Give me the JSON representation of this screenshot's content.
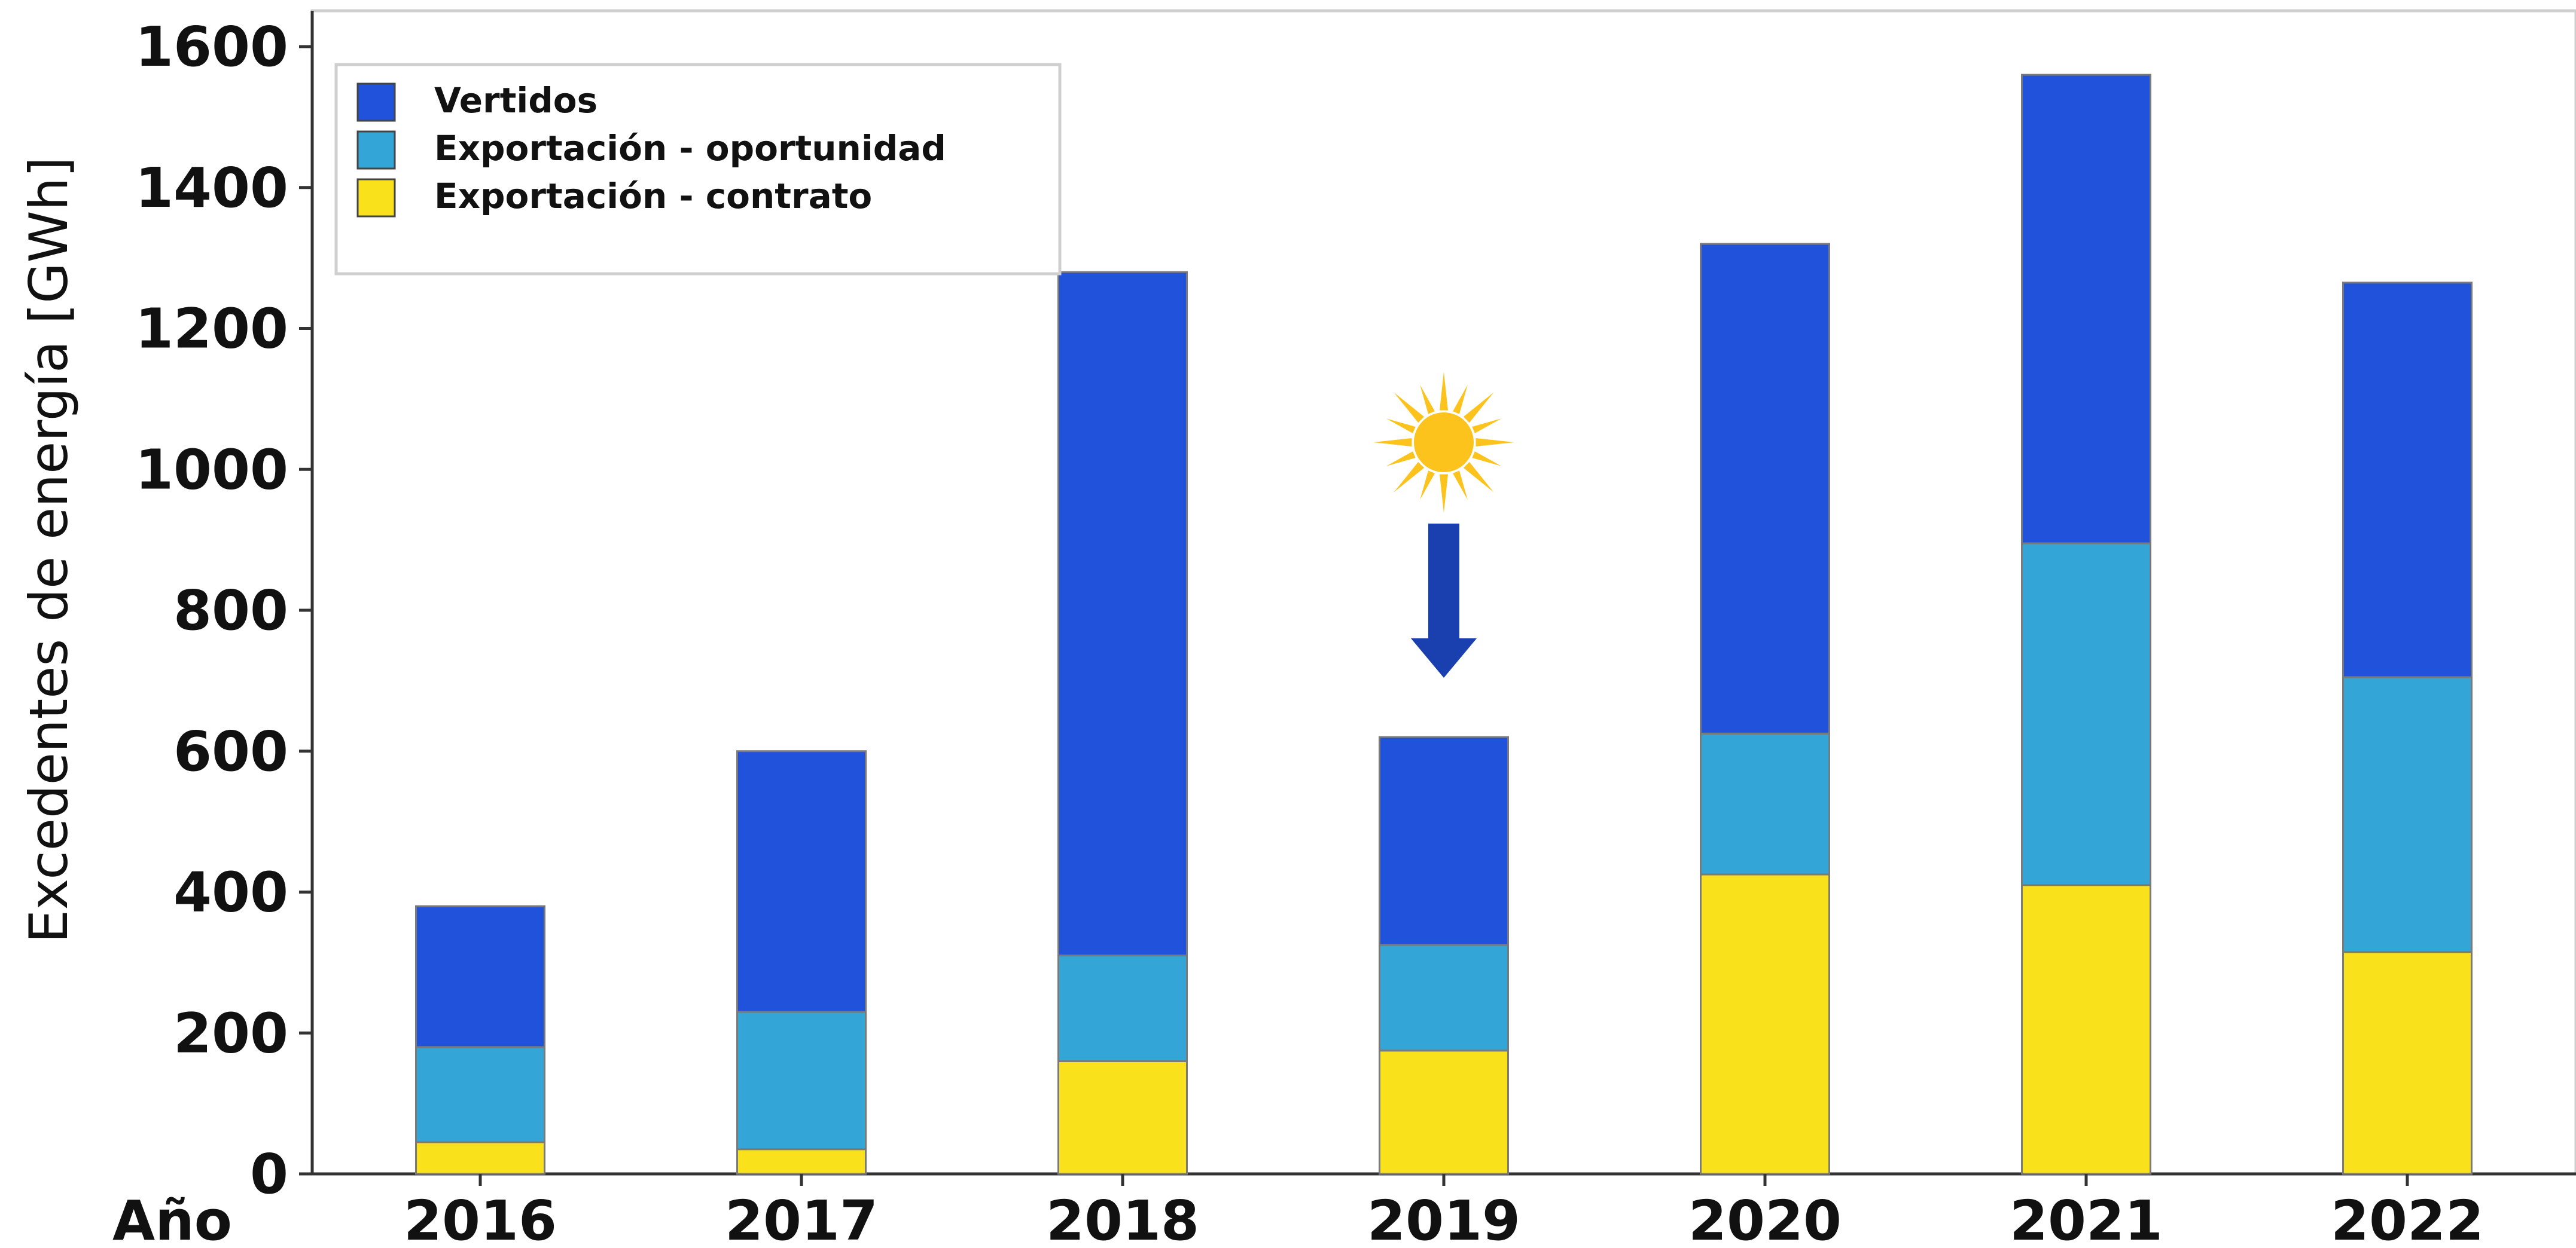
{
  "chart_data": {
    "type": "bar",
    "stacked": true,
    "categories": [
      "2016",
      "2017",
      "2018",
      "2019",
      "2020",
      "2021",
      "2022"
    ],
    "series": [
      {
        "name": "Exportación - contrato",
        "color": "#f9e21c",
        "values": [
          45,
          35,
          160,
          175,
          425,
          410,
          315
        ]
      },
      {
        "name": "Exportación - oportunidad",
        "color": "#33a5d6",
        "values": [
          135,
          195,
          150,
          150,
          200,
          485,
          390
        ]
      },
      {
        "name": "Vertidos",
        "color": "#2052db",
        "values": [
          200,
          370,
          970,
          295,
          695,
          665,
          560
        ]
      }
    ],
    "legend_order": [
      "Vertidos",
      "Exportación - oportunidad",
      "Exportación - contrato"
    ],
    "legend_position": "top-left",
    "xlabel": "Año",
    "ylabel": "Excedentes de energía [GWh]",
    "ylim": [
      0,
      1600
    ],
    "yticks": [
      0,
      200,
      400,
      600,
      800,
      1000,
      1200,
      1400,
      1600
    ],
    "grid": false,
    "annotation": {
      "type": "sun-with-down-arrow",
      "category": "2019",
      "sun_icon": "sun-icon",
      "arrow_icon": "arrow-down-icon",
      "sun_color": "#fbc31c",
      "arrow_color": "#1a3fae"
    }
  }
}
